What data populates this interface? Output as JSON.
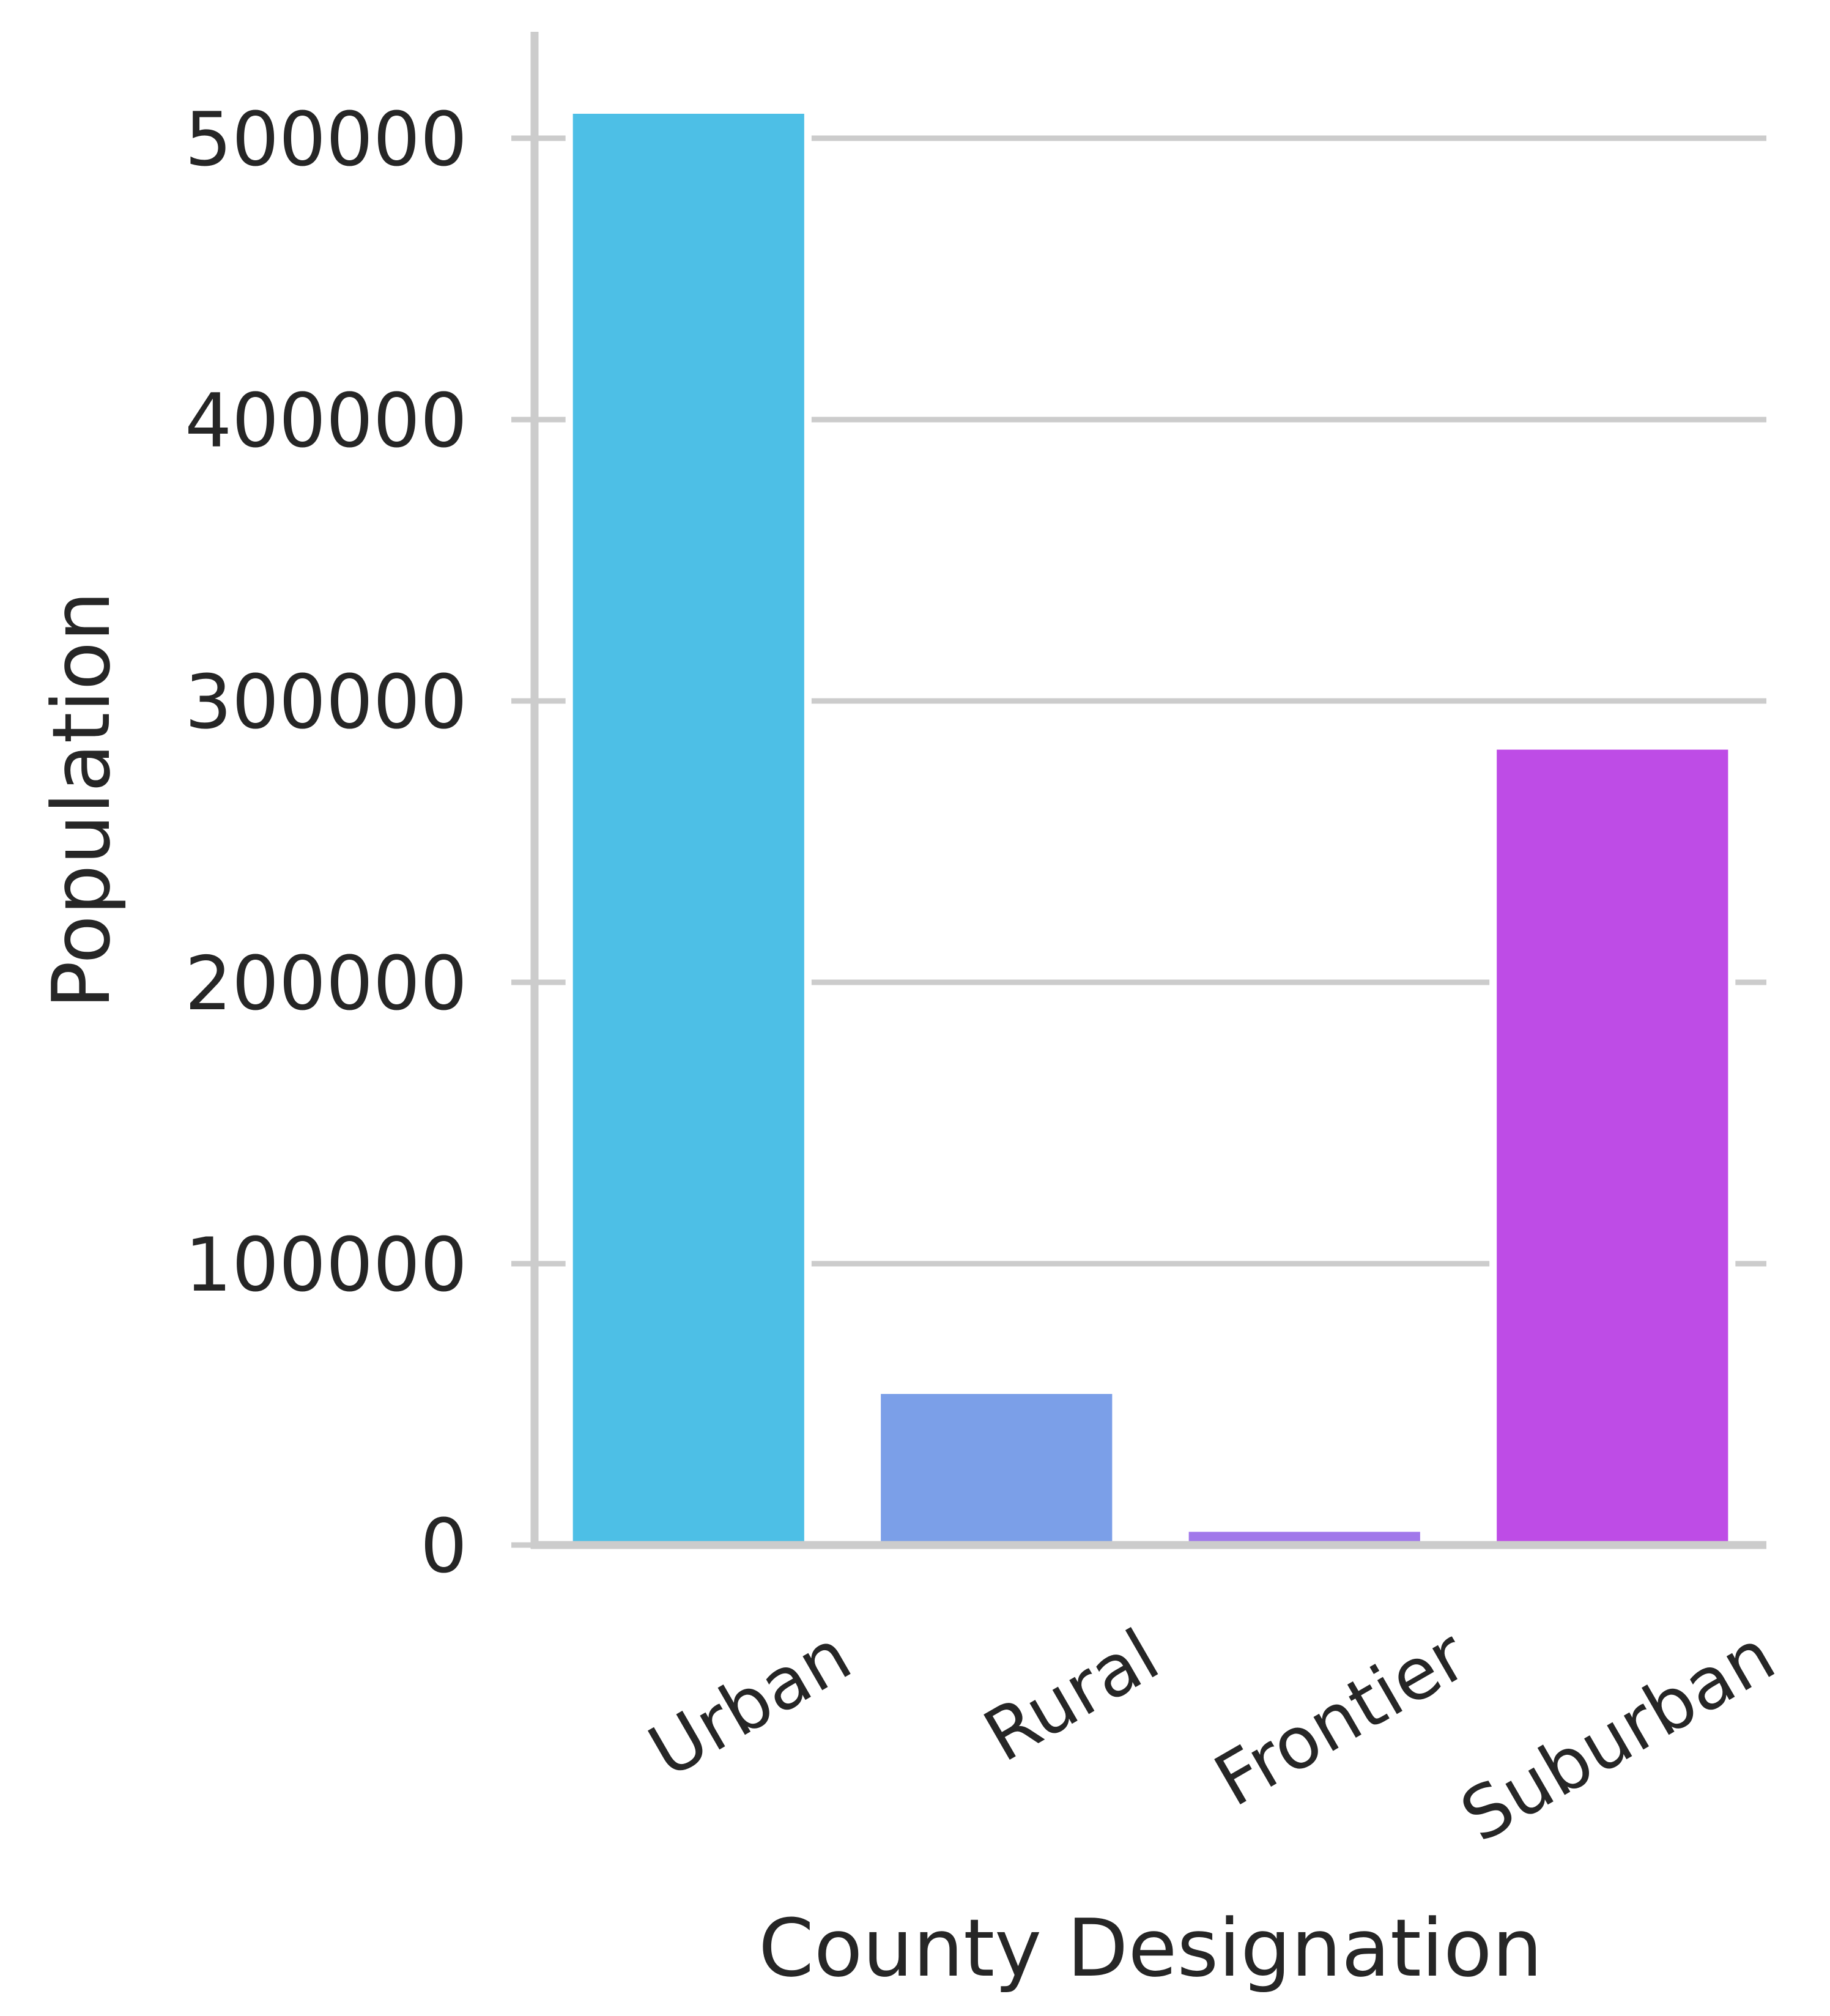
{
  "chart_data": {
    "type": "bar",
    "title": "",
    "xlabel": "County Designation",
    "ylabel": "Population",
    "categories": [
      "Urban",
      "Rural",
      "Frontier",
      "Suburban"
    ],
    "values": [
      510000,
      55000,
      6000,
      284000
    ],
    "colors": [
      "#4dbfe6",
      "#7b9fe8",
      "#a178ea",
      "#be4ce6"
    ],
    "ylim": [
      0,
      535000
    ],
    "yticks": [
      0,
      100000,
      200000,
      300000,
      400000,
      500000
    ],
    "ytick_labels": [
      "0",
      "100000",
      "200000",
      "300000",
      "400000",
      "500000"
    ],
    "grid": "y",
    "legend": "none"
  }
}
